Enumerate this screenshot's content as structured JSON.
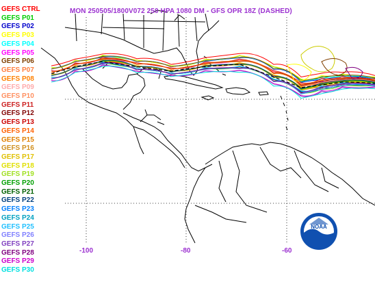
{
  "title": "MON 250505/1800V072  250 HPA 1080 DM - GFS OPR 18Z (DASHED)",
  "legend": [
    {
      "label": "GEFS CTRL",
      "color": "#ff0000"
    },
    {
      "label": "GEFS P01",
      "color": "#00cc00"
    },
    {
      "label": "GEFS P02",
      "color": "#0000cc"
    },
    {
      "label": "GEFS P03",
      "color": "#ffff00"
    },
    {
      "label": "GEFS P04",
      "color": "#00ffff"
    },
    {
      "label": "GEFS P05",
      "color": "#ff00ff"
    },
    {
      "label": "GEFS P06",
      "color": "#804000"
    },
    {
      "label": "GEFS P07",
      "color": "#ff8040"
    },
    {
      "label": "GEFS P08",
      "color": "#ff8000"
    },
    {
      "label": "GEFS P09",
      "color": "#ffaaaa"
    },
    {
      "label": "GEFS P10",
      "color": "#ff9060"
    },
    {
      "label": "GEFS P11",
      "color": "#cc2020"
    },
    {
      "label": "GEFS P12",
      "color": "#800000"
    },
    {
      "label": "GEFS P13",
      "color": "#cc0000"
    },
    {
      "label": "GEFS P14",
      "color": "#ff6000"
    },
    {
      "label": "GEFS P15",
      "color": "#e08000"
    },
    {
      "label": "GEFS P16",
      "color": "#d09020"
    },
    {
      "label": "GEFS P17",
      "color": "#e0c000"
    },
    {
      "label": "GEFS P18",
      "color": "#e0e000"
    },
    {
      "label": "GEFS P19",
      "color": "#a0e020"
    },
    {
      "label": "GEFS P20",
      "color": "#00a000"
    },
    {
      "label": "GEFS P21",
      "color": "#006000"
    },
    {
      "label": "GEFS P22",
      "color": "#004080"
    },
    {
      "label": "GEFS P23",
      "color": "#0080ff"
    },
    {
      "label": "GEFS P24",
      "color": "#00a0c0"
    },
    {
      "label": "GEFS P25",
      "color": "#20c0ff"
    },
    {
      "label": "GEFS P26",
      "color": "#8080ff"
    },
    {
      "label": "GEFS P27",
      "color": "#8040c0"
    },
    {
      "label": "GEFS P28",
      "color": "#800080"
    },
    {
      "label": "GEFS P29",
      "color": "#cc00cc"
    },
    {
      "label": "GEFS P30",
      "color": "#00e0e0"
    }
  ],
  "lon_labels": [
    "-100",
    "-80",
    "-60"
  ],
  "logo_text": "NOAA",
  "colors": {
    "title": "#9b30d0",
    "coast": "#000000",
    "grid": "#000000"
  }
}
